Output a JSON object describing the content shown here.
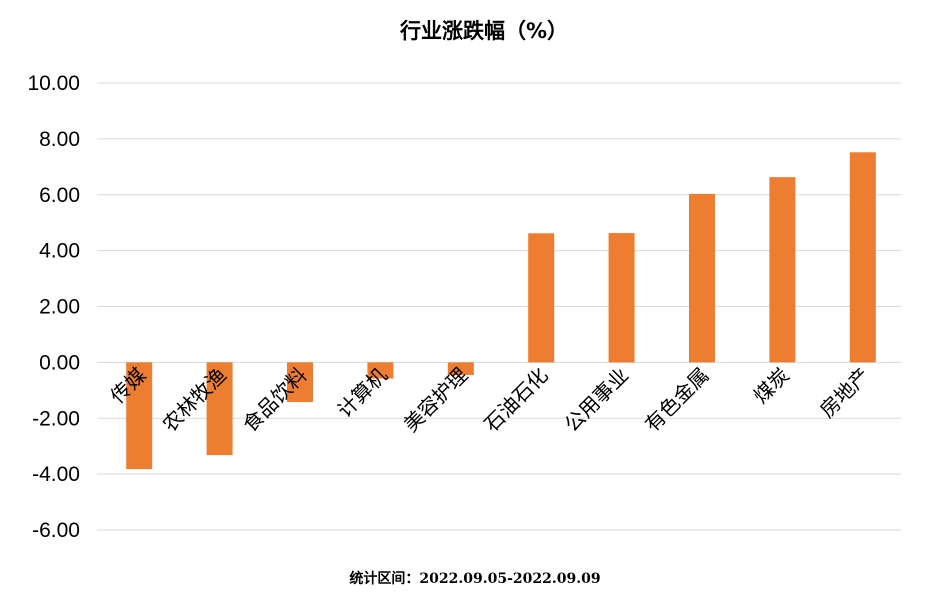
{
  "chart_data": {
    "type": "bar",
    "title": "行业涨跌幅（%）",
    "categories": [
      "传媒",
      "农林牧渔",
      "食品饮料",
      "计算机",
      "美容护理",
      "石油石化",
      "公用事业",
      "有色金属",
      "煤炭",
      "房地产"
    ],
    "values": [
      -3.82,
      -3.32,
      -1.42,
      -0.58,
      -0.45,
      4.62,
      4.63,
      6.03,
      6.63,
      7.52
    ],
    "ylim": [
      -6,
      10
    ],
    "yticks": [
      "10.00",
      "8.00",
      "6.00",
      "4.00",
      "2.00",
      "0.00",
      "-2.00",
      "-4.00",
      "-6.00"
    ],
    "grid": true,
    "bar_color": "#ED7D31",
    "xlabel": "",
    "ylabel": ""
  },
  "footer": {
    "text": "统计区间：2022.09.05-2022.09.09"
  }
}
